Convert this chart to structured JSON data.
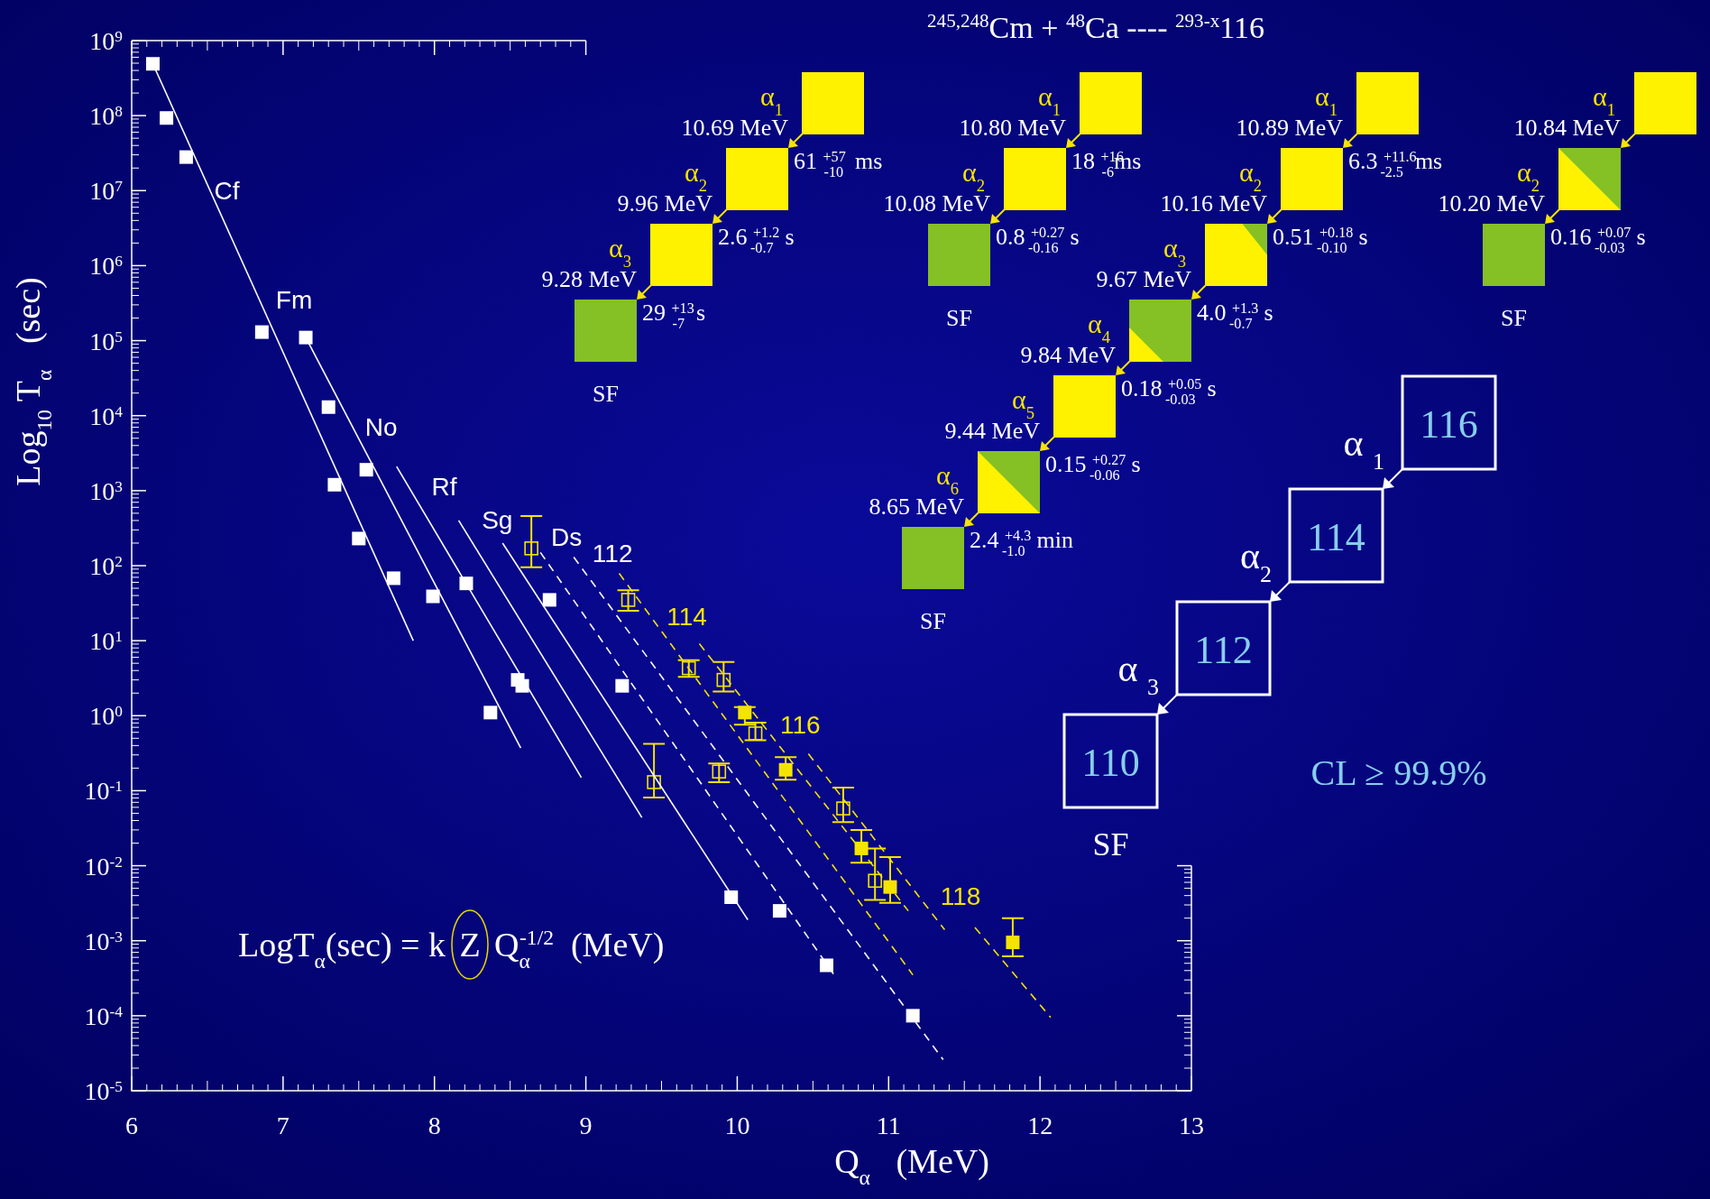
{
  "chart_data": [
    {
      "type": "scatter",
      "xlabel": "Q$_{α}$   (MeV)",
      "ylabel": "Log$_{10}$ T$_{α}$   (sec)",
      "log": "y",
      "xlim": [
        6,
        13
      ],
      "xticks": [
        6,
        7,
        8,
        9,
        10,
        11,
        12,
        13
      ],
      "ylim": [
        1e-05,
        1000000000.0
      ],
      "yticks": [
        {
          "value": 1e-05,
          "label": "10$^{-5}$"
        },
        {
          "value": 0.0001,
          "label": "10$^{-4}$"
        },
        {
          "value": 0.001,
          "label": "10$^{-3}$"
        },
        {
          "value": 0.01,
          "label": "10$^{-2}$"
        },
        {
          "value": 0.1,
          "label": "10$^{-1}$"
        },
        {
          "value": 1,
          "label": "10$^{0}$"
        },
        {
          "value": 10,
          "label": "10$^{1}$"
        },
        {
          "value": 100,
          "label": "10$^{2}$"
        },
        {
          "value": 1000,
          "label": "10$^{3}$"
        },
        {
          "value": 10000.0,
          "label": "10$^{4}$"
        },
        {
          "value": 100000.0,
          "label": "10$^{5}$"
        },
        {
          "value": 1000000.0,
          "label": "10$^{6}$"
        },
        {
          "value": 10000000.0,
          "label": "10$^{7}$"
        },
        {
          "value": 100000000.0,
          "label": "10$^{8}$"
        },
        {
          "value": 1000000000.0,
          "label": "10$^{9}$"
        }
      ],
      "annotations": [
        "LogT$_{α}$(sec) = k",
        "Z",
        "Q$_{α}$$^{-1/2}$  (MeV)"
      ],
      "series": [
        {
          "type": "scatter",
          "marker": "square",
          "color": "#ffffff",
          "x": [
            6.14,
            6.23,
            6.36,
            6.86,
            7.15,
            7.3,
            7.34,
            7.55,
            7.5,
            7.73,
            7.99,
            8.21,
            8.37,
            8.55,
            8.58,
            8.76,
            9.24,
            9.96,
            10.28,
            10.59,
            11.16
          ],
          "values": [
            490000000.0,
            93000000.0,
            28000000.0,
            130000.0,
            110000.0,
            13000.0,
            1200.0,
            1900.0,
            230,
            68,
            39,
            58,
            1.1,
            3.0,
            2.5,
            35,
            2.5,
            0.0038,
            0.0025,
            0.00047,
            0.0001
          ]
        },
        {
          "type": "scatter",
          "marker": "square",
          "color": "#f5e400",
          "x": [
            8.64,
            9.28,
            9.68,
            9.91,
            9.45,
            9.88,
            10.12,
            10.7,
            10.91
          ],
          "values": [
            170,
            35,
            4.3,
            3.0,
            0.13,
            0.18,
            0.58,
            0.058,
            0.0063
          ],
          "errors": [
            [
              95,
              460
            ],
            [
              25,
              47
            ],
            [
              3.3,
              5.5
            ],
            [
              2.1,
              5.2
            ],
            [
              0.081,
              0.42
            ],
            [
              0.13,
              0.23
            ],
            [
              0.47,
              0.81
            ],
            [
              0.038,
              0.11
            ],
            [
              0.0035,
              0.017
            ]
          ]
        },
        {
          "type": "scatter",
          "marker": "square",
          "color": "#f5e400",
          "x": [
            10.05,
            10.32,
            10.82,
            11.01,
            11.82
          ],
          "values": [
            1.1,
            0.19,
            0.017,
            0.0052,
            0.00095
          ],
          "errors": [
            [
              0.76,
              1.3
            ],
            [
              0.14,
              0.28
            ],
            [
              0.011,
              0.03
            ],
            [
              0.0032,
              0.013
            ],
            [
              0.00062,
              0.002
            ]
          ]
        },
        {
          "type": "line",
          "name": "Cf",
          "color": "#ffffff",
          "line_style": "solid",
          "x": [
            6.14,
            7.86
          ],
          "values": [
            490000000.0,
            10
          ]
        },
        {
          "type": "line",
          "name": "Fm",
          "color": "#ffffff",
          "line_style": "solid",
          "x": [
            7.15,
            8.57
          ],
          "values": [
            110000.0,
            0.37
          ]
        },
        {
          "type": "line",
          "name": "No",
          "color": "#ffffff",
          "line_style": "solid",
          "x": [
            7.75,
            8.97
          ],
          "values": [
            2100,
            0.15
          ]
        },
        {
          "type": "line",
          "name": "Rf",
          "color": "#ffffff",
          "line_style": "solid",
          "x": [
            8.16,
            9.37
          ],
          "values": [
            400,
            0.044
          ]
        },
        {
          "type": "line",
          "name": "Sg",
          "color": "#ffffff",
          "line_style": "solid",
          "x": [
            8.45,
            10.07
          ],
          "values": [
            200,
            0.0019
          ]
        },
        {
          "type": "line",
          "name": "Ds",
          "color": "#ffffff",
          "line_style": "dashed",
          "x": [
            8.7,
            10.64
          ],
          "values": [
            150,
            0.00035
          ]
        },
        {
          "type": "line",
          "name": "112",
          "color": "#ffffff",
          "line_style": "dashed",
          "x": [
            8.92,
            11.36
          ],
          "values": [
            130,
            2.6e-05
          ]
        },
        {
          "type": "line",
          "color": "#f5e400",
          "line_style": "dashed",
          "x": [
            9.22,
            11.16
          ],
          "values": [
            79,
            0.00035
          ]
        },
        {
          "type": "line",
          "name": "114",
          "color": "#f5e400",
          "line_style": "dashed",
          "x": [
            9.75,
            11.13
          ],
          "values": [
            9.1,
            0.0025
          ]
        },
        {
          "type": "line",
          "name": "116",
          "color": "#f5e400",
          "line_style": "dashed",
          "x": [
            10.47,
            11.37
          ],
          "values": [
            0.31,
            0.0014
          ]
        },
        {
          "type": "line",
          "name": "118",
          "color": "#f5e400",
          "line_style": "dashed",
          "x": [
            11.57,
            12.07
          ],
          "values": [
            0.0015,
            9.5e-05
          ]
        }
      ]
    },
    {
      "type": "other",
      "title": "$^{245,248}$Cm + $^{48}$Ca ---- $^{293-x}$116",
      "annotations": [
        "α$_{1}$",
        "10.69 MeV",
        "61 $^{+57}$$_{-10}$  ms",
        "α$_{2}$",
        "9.96 MeV",
        "2.6 $^{+1.2}$$_{-0.7}$  s",
        "α$_{3}$",
        "9.28 MeV",
        "29 $^{+13}$$_{-7}$  s",
        "SF",
        "α$_{1}$",
        "10.80 MeV",
        "18 $^{+16}$$_{-6}$ms",
        "α$_{2}$",
        "10.08 MeV",
        "0.8 $^{+0.27}$$_{-0.16}$  s",
        "SF",
        "α$_{1}$",
        "10.89 MeV",
        "6.3 $^{+11.6}$$_{-2.5}$  ms",
        "α$_{2}$",
        "10.16 MeV",
        "0.51 $^{+0.18}$$_{-0.10}$  s",
        "α$_{3}$",
        "9.67 MeV",
        "4.0 $^{+1.3}$$_{-0.7}$  s",
        "α$_{4}$",
        "9.84 MeV",
        "0.18 $^{+0.05}$$_{-0.03}$  s",
        "α$_{5}$",
        "9.44 MeV",
        "0.15 $^{+0.27}$$_{-0.06}$  s",
        "α$_{6}$",
        "8.65 MeV",
        "2.4 $^{+4.3}$$_{-1.0}$  min",
        "SF",
        "α$_{1}$",
        "10.84 MeV",
        "α$_{2}$",
        "10.20 MeV",
        "0.16 $^{+0.07}$$_{-0.03}$  s",
        "SF",
        "116",
        "114",
        "112",
        "110",
        "α $_{1}$",
        "α$_{2}$",
        "α $_{3}$",
        "SF",
        "CL ≥ 99.9%"
      ]
    }
  ]
}
